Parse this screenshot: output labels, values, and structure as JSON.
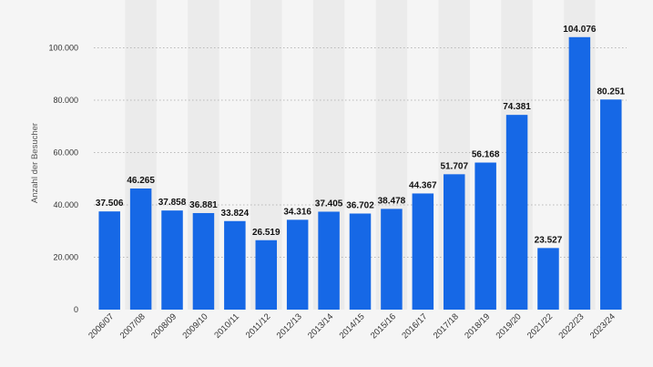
{
  "chart_data": {
    "type": "bar",
    "title": "",
    "xlabel": "",
    "ylabel": "Anzahl der Besucher",
    "categories": [
      "2006/07",
      "2007/08",
      "2008/09",
      "2009/10",
      "2010/11",
      "2011/12",
      "2012/13",
      "2013/14",
      "2014/15",
      "2015/16",
      "2016/17",
      "2017/18",
      "2018/19",
      "2019/20",
      "2021/22",
      "2022/23",
      "2023/24"
    ],
    "values": [
      37506,
      46265,
      37858,
      36881,
      33824,
      26519,
      34316,
      37405,
      36702,
      38478,
      44367,
      51707,
      56168,
      74381,
      23527,
      104076,
      80251
    ],
    "value_labels": [
      "37.506",
      "46.265",
      "37.858",
      "36.881",
      "33.824",
      "26.519",
      "34.316",
      "37.405",
      "36.702",
      "38.478",
      "44.367",
      "51.707",
      "56.168",
      "74.381",
      "23.527",
      "104.076",
      "80.251"
    ],
    "ylim": [
      0,
      112000
    ],
    "yticks": [
      0,
      20000,
      40000,
      60000,
      80000,
      100000
    ],
    "ytick_labels": [
      "0",
      "20.000",
      "40.000",
      "60.000",
      "80.000",
      "100.000"
    ],
    "grid": true,
    "bar_color": "#1668e6",
    "alt_band_color": "#ebebeb"
  }
}
